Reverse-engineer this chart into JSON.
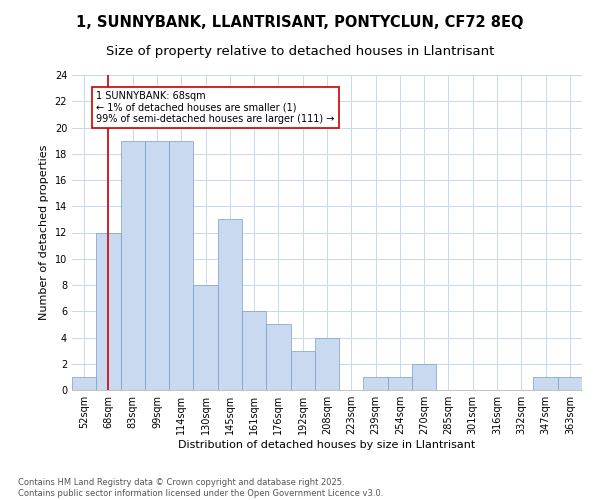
{
  "title1": "1, SUNNYBANK, LLANTRISANT, PONTYCLUN, CF72 8EQ",
  "title2": "Size of property relative to detached houses in Llantrisant",
  "xlabel": "Distribution of detached houses by size in Llantrisant",
  "ylabel": "Number of detached properties",
  "bar_labels": [
    "52sqm",
    "68sqm",
    "83sqm",
    "99sqm",
    "114sqm",
    "130sqm",
    "145sqm",
    "161sqm",
    "176sqm",
    "192sqm",
    "208sqm",
    "223sqm",
    "239sqm",
    "254sqm",
    "270sqm",
    "285sqm",
    "301sqm",
    "316sqm",
    "332sqm",
    "347sqm",
    "363sqm"
  ],
  "bar_values": [
    1,
    12,
    19,
    19,
    19,
    8,
    13,
    6,
    5,
    3,
    4,
    0,
    1,
    1,
    2,
    0,
    0,
    0,
    0,
    1,
    1
  ],
  "bar_color": "#c9d9f0",
  "bar_edge_color": "#7a9dc8",
  "vline_x": 1,
  "vline_color": "#cc0000",
  "annotation_line1": "1 SUNNYBANK: 68sqm",
  "annotation_line2": "← 1% of detached houses are smaller (1)",
  "annotation_line3": "99% of semi-detached houses are larger (111) →",
  "annotation_box_color": "#ffffff",
  "annotation_box_edge": "#cc0000",
  "ylim": [
    0,
    24
  ],
  "yticks": [
    0,
    2,
    4,
    6,
    8,
    10,
    12,
    14,
    16,
    18,
    20,
    22,
    24
  ],
  "footer1": "Contains HM Land Registry data © Crown copyright and database right 2025.",
  "footer2": "Contains public sector information licensed under the Open Government Licence v3.0.",
  "bg_color": "#ffffff",
  "grid_color": "#c8d8f0",
  "title1_fontsize": 10.5,
  "title2_fontsize": 9.5,
  "axis_fontsize": 8,
  "tick_fontsize": 7,
  "footer_fontsize": 6,
  "annotation_fontsize": 7
}
